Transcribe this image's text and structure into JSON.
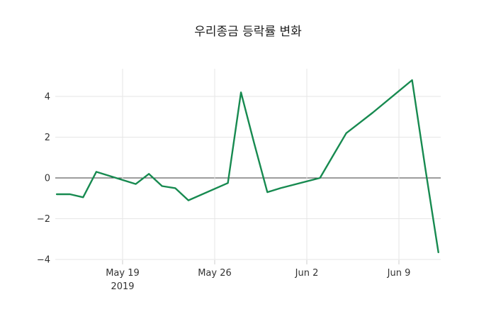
{
  "title": "우리종금 등락률 변화",
  "colors": {
    "line": "#178a50",
    "grid": "#e6e6e6",
    "zero_line": "#3b3b3b",
    "tick": "#cccccc",
    "text": "#333333",
    "background": "#ffffff"
  },
  "chart_data": {
    "type": "line",
    "title": "우리종금 등락률 변화",
    "series_name": "등락률",
    "x": [
      "2019-05-14",
      "2019-05-15",
      "2019-05-16",
      "2019-05-17",
      "2019-05-20",
      "2019-05-21",
      "2019-05-22",
      "2019-05-23",
      "2019-05-24",
      "2019-05-27",
      "2019-05-28",
      "2019-05-29",
      "2019-05-30",
      "2019-05-31",
      "2019-06-03",
      "2019-06-04",
      "2019-06-05",
      "2019-06-07",
      "2019-06-10",
      "2019-06-11",
      "2019-06-12"
    ],
    "y": [
      -0.8,
      -0.8,
      -0.95,
      0.3,
      -0.3,
      0.2,
      -0.4,
      -0.5,
      -1.1,
      -0.25,
      4.2,
      1.7,
      -0.7,
      -0.5,
      0.0,
      1.1,
      2.2,
      3.2,
      4.8,
      0.5,
      -3.65
    ],
    "xlabel": "",
    "ylabel": "",
    "x_tick_labels": [
      {
        "date": "2019-05-19",
        "label": "May 19",
        "sublabel": "2019"
      },
      {
        "date": "2019-05-26",
        "label": "May 26",
        "sublabel": ""
      },
      {
        "date": "2019-06-02",
        "label": "Jun 2",
        "sublabel": ""
      },
      {
        "date": "2019-06-09",
        "label": "Jun 9",
        "sublabel": ""
      }
    ],
    "y_ticks": [
      4,
      2,
      0,
      -2,
      -4
    ],
    "y_tick_labels": [
      "4",
      "2",
      "0",
      "−2",
      "−4"
    ],
    "ylim": [
      -4.05,
      5.35
    ],
    "xlim": [
      "2019-05-13",
      "2019-06-13"
    ],
    "grid": true,
    "legend": "none",
    "markers": "none"
  }
}
